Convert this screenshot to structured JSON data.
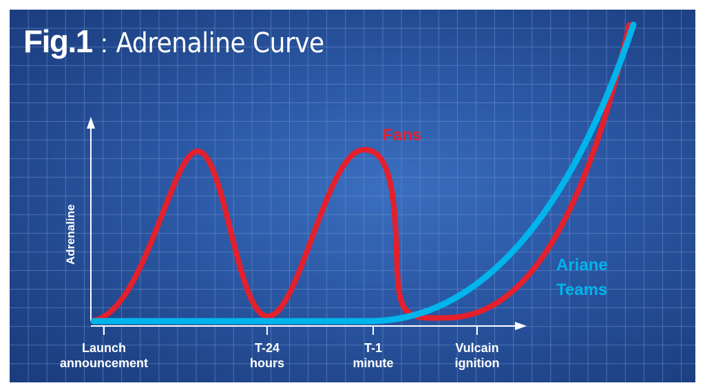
{
  "title": {
    "bold": "Fig.1",
    "separator": ":",
    "rest": "Adrenaline Curve"
  },
  "colors": {
    "fans": "#e3202c",
    "ariane": "#00b4ec",
    "background": "#2a56a3",
    "grid": "#6f93cf",
    "axis": "#ffffff"
  },
  "chart_data": {
    "type": "line",
    "ylabel": "Adrenaline",
    "xlabel": "",
    "x_ticks": [
      {
        "lines": [
          "Launch",
          "announcement"
        ]
      },
      {
        "lines": [
          "T-24",
          "hours"
        ]
      },
      {
        "lines": [
          "T-1",
          "minute"
        ]
      },
      {
        "lines": [
          "Vulcain",
          "ignition"
        ]
      }
    ],
    "series": [
      {
        "name": "Fans",
        "label_lines": [
          "Fans"
        ],
        "color": "#e3202c"
      },
      {
        "name": "Ariane Teams",
        "label_lines": [
          "Ariane",
          "Teams"
        ],
        "color": "#00b4ec"
      }
    ]
  }
}
